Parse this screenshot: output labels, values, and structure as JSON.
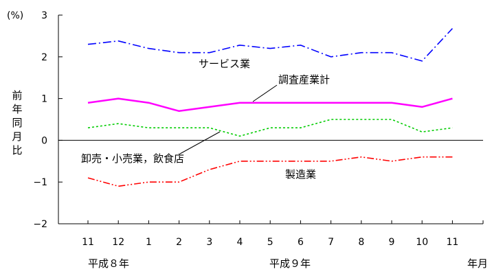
{
  "chart_data": {
    "type": "line",
    "y_unit_label": "(%)",
    "ylabel": "前年同月比",
    "xlabel": "年月",
    "ylim": [
      -2,
      3
    ],
    "yticks": [
      "3",
      "2",
      "1",
      "0",
      "−1",
      "−2"
    ],
    "categories": [
      "11",
      "12",
      "1",
      "2",
      "3",
      "4",
      "5",
      "6",
      "7",
      "8",
      "9",
      "10",
      "11"
    ],
    "year_labels": [
      {
        "text": "平成８年"
      },
      {
        "text": "平成９年"
      }
    ],
    "series": [
      {
        "name": "サービス業",
        "color": "#0000ff",
        "dash": "dashdot",
        "values": [
          2.3,
          2.38,
          2.2,
          2.1,
          2.1,
          2.28,
          2.2,
          2.28,
          2.0,
          2.1,
          2.1,
          1.9,
          2.68
        ]
      },
      {
        "name": "調査産業計",
        "color": "#ff00ff",
        "dash": "solid",
        "values": [
          0.9,
          1.0,
          0.9,
          0.7,
          0.8,
          0.9,
          0.9,
          0.9,
          0.9,
          0.9,
          0.9,
          0.8,
          1.0
        ]
      },
      {
        "name": "卸売・小売業，飲食店",
        "color": "#00cc00",
        "dash": "dotted",
        "values": [
          0.3,
          0.4,
          0.3,
          0.3,
          0.3,
          0.1,
          0.3,
          0.3,
          0.5,
          0.5,
          0.5,
          0.2,
          0.3
        ]
      },
      {
        "name": "製造業",
        "color": "#ff0000",
        "dash": "dashdotdot",
        "values": [
          -0.9,
          -1.1,
          -1.0,
          -1.0,
          -0.7,
          -0.5,
          -0.5,
          -0.5,
          -0.5,
          -0.4,
          -0.5,
          -0.4,
          -0.4
        ]
      }
    ]
  }
}
